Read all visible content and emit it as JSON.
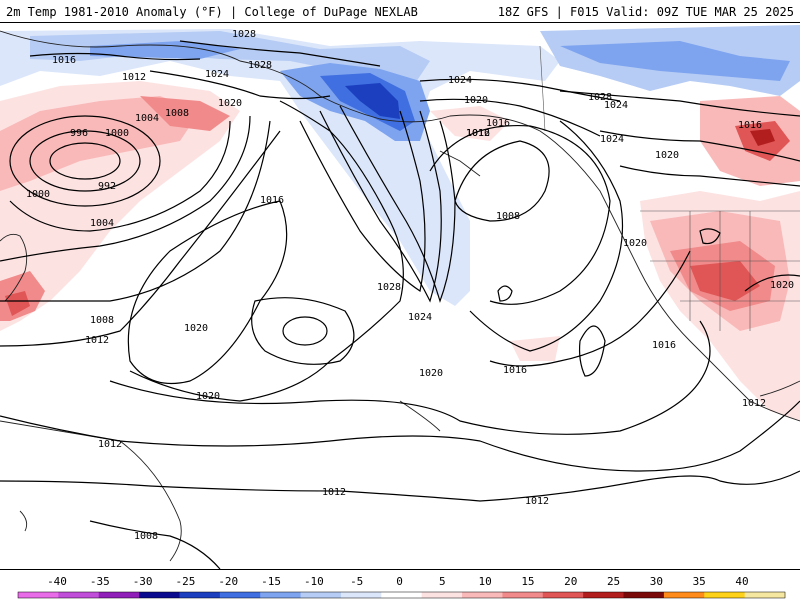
{
  "header": {
    "left_title": "2m Temp 1981-2010 Anomaly (°F) | College of DuPage NEXLAB",
    "right_title": "18Z GFS | F015 Valid: 09Z TUE MAR 25 2025"
  },
  "isobar_labels": [
    "1028",
    "1016",
    "1012",
    "1024",
    "1004",
    "1008",
    "1020",
    "996",
    "1000",
    "992",
    "1000",
    "1004",
    "1016",
    "1008",
    "1012",
    "1020",
    "1028",
    "1024",
    "1020",
    "1016",
    "1016",
    "1024",
    "1028",
    "1024",
    "1020",
    "1012",
    "1016",
    "1016",
    "1024",
    "1020",
    "1008",
    "1020",
    "1016",
    "1020",
    "1012",
    "1012",
    "1012",
    "1012",
    "1008",
    "1028",
    "1020"
  ],
  "colorbar": {
    "labels": [
      "-40",
      "-35",
      "-30",
      "-25",
      "-20",
      "-15",
      "-10",
      "-5",
      "0",
      "5",
      "10",
      "15",
      "20",
      "25",
      "30",
      "35",
      "40"
    ],
    "colors": [
      "#e86be8",
      "#c14ed9",
      "#8f1fb8",
      "#0b0b8f",
      "#1b3fbf",
      "#3f6fe0",
      "#7ea4ef",
      "#b6ccf4",
      "#dbe6fa",
      "#ffffff",
      "#fde2e2",
      "#f9b9b9",
      "#f18a8a",
      "#e05555",
      "#b21e1e",
      "#7a0a0a",
      "#ff8c1a",
      "#ffd21a",
      "#f5e6a0"
    ]
  }
}
